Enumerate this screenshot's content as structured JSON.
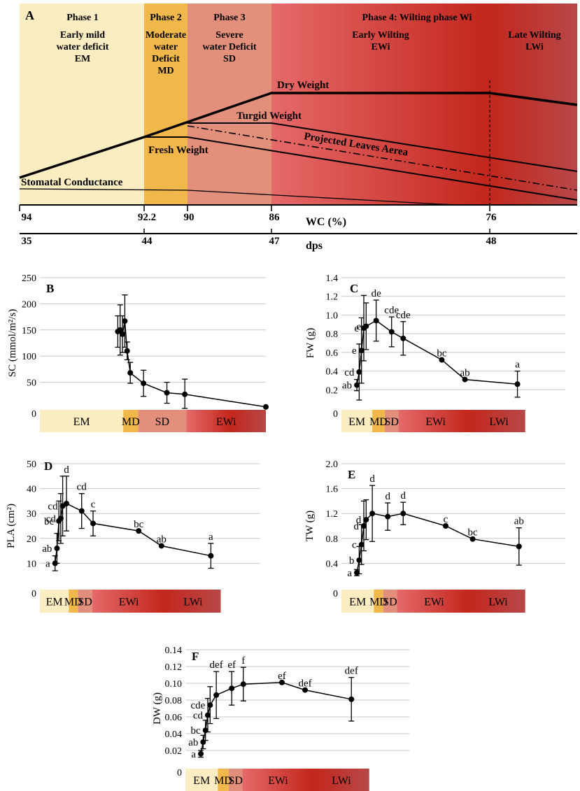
{
  "figure": {
    "colors": {
      "em": "#fbedc2",
      "md": "#f0b84a",
      "sd": "#e2907c",
      "ewi_light": "#e56a6a",
      "ewi_mid": "#c3261c",
      "lwi_dark": "#b84848",
      "line": "#000000"
    }
  },
  "panelA": {
    "letter": "A",
    "phases": [
      {
        "title": "Phase 1",
        "lines": [
          "Early mild",
          "water deficit",
          "EM"
        ]
      },
      {
        "title": "Phase 2",
        "lines": [
          "Moderate",
          "water",
          "Deficit",
          "MD"
        ]
      },
      {
        "title": "Phase 3",
        "lines": [
          "Severe",
          "water Deficit",
          "SD"
        ]
      },
      {
        "title": "Phase 4: Wilting phase Wi",
        "lines": []
      }
    ],
    "subphases": [
      {
        "lines": [
          "Early Wilting",
          "EWi"
        ]
      },
      {
        "lines": [
          "Late Wilting",
          "LWi"
        ]
      }
    ],
    "curves": {
      "dry": "Dry Weight",
      "turgid": "Turgid Weight",
      "fresh": "Fresh Weight",
      "pla": "Projected Leaves Aerea",
      "sc": "Stomatal Conductance"
    },
    "wc_ticks": [
      "94",
      "92.2",
      "90",
      "86",
      "76"
    ],
    "wc_label": "WC (%)",
    "dps_ticks": [
      "35",
      "44",
      "47",
      "48"
    ],
    "dps_label": "dps"
  },
  "chart_data": [
    {
      "id": "B",
      "type": "line",
      "ylabel": "SC (mmol/m²/s)",
      "ylim": [
        0,
        250
      ],
      "yticks": [
        "0",
        "50",
        "100",
        "150",
        "200",
        "250"
      ],
      "xmax": 29,
      "x": [
        10.0,
        10.3,
        10.6,
        10.9,
        11.2,
        11.6,
        13.3,
        16.3,
        18.6,
        29.0
      ],
      "y": [
        147,
        150,
        142,
        167,
        110,
        68,
        48,
        30,
        27,
        3
      ],
      "err": [
        30,
        48,
        35,
        50,
        17,
        20,
        25,
        20,
        29,
        0
      ],
      "sig": [],
      "band": [
        {
          "label": "EM",
          "from": 0,
          "to": 10.7
        },
        {
          "label": "MD",
          "from": 10.7,
          "to": 12.6
        },
        {
          "label": "SD",
          "from": 12.6,
          "to": 18.8
        },
        {
          "label": "EWi",
          "from": 18.8,
          "to": 29.0
        }
      ]
    },
    {
      "id": "C",
      "type": "line",
      "ylabel": "FW (g)",
      "ylim": [
        0,
        1.4
      ],
      "yticks": [
        "0",
        "0.2",
        "0.4",
        "0.6",
        "0.8",
        "1.0",
        "1.2",
        "1.4"
      ],
      "xmax": 29,
      "x": [
        2.0,
        2.3,
        2.6,
        2.9,
        3.2,
        4.5,
        6.5,
        8.0,
        13.0,
        16.0,
        22.8
      ],
      "y": [
        0.25,
        0.39,
        0.62,
        0.86,
        0.88,
        0.94,
        0.82,
        0.75,
        0.52,
        0.31,
        0.26
      ],
      "err": [
        0.06,
        0.3,
        0.35,
        0.35,
        0.25,
        0.22,
        0.16,
        0.18,
        0.0,
        0.0,
        0.14
      ],
      "sig": [
        "ab",
        "cd",
        "e",
        "e",
        "e",
        "de",
        "cde",
        "cde",
        "bc",
        "ab",
        "a"
      ],
      "band": [
        {
          "label": "EM",
          "from": 0,
          "to": 4.0
        },
        {
          "label": "MD",
          "from": 4.0,
          "to": 5.6
        },
        {
          "label": "SD",
          "from": 5.6,
          "to": 7.4
        },
        {
          "label": "EWi",
          "from": 7.4,
          "to": 17.0
        },
        {
          "label": "LWi",
          "from": 17.0,
          "to": 23.8
        }
      ]
    },
    {
      "id": "D",
      "type": "line",
      "ylabel": "PLA (cm²)",
      "ylim": [
        0,
        50
      ],
      "yticks": [
        "0",
        "10",
        "20",
        "30",
        "40",
        "50"
      ],
      "xmax": 29,
      "x": [
        2.0,
        2.25,
        2.5,
        2.75,
        3.0,
        3.5,
        5.5,
        7.0,
        13.0,
        16.0,
        22.5
      ],
      "y": [
        10,
        16,
        27,
        28,
        33,
        34,
        31,
        26,
        23,
        17,
        13
      ],
      "err": [
        3,
        6,
        8,
        10,
        12,
        11,
        7,
        5,
        0,
        0,
        5
      ],
      "sig": [
        "a",
        "ab",
        "bc",
        "cd",
        "cd",
        "d",
        "cd",
        "c",
        "bc",
        "ab",
        "a"
      ],
      "band": [
        {
          "label": "EM",
          "from": 0,
          "to": 3.8
        },
        {
          "label": "MD",
          "from": 3.8,
          "to": 5.0
        },
        {
          "label": "SD",
          "from": 5.0,
          "to": 6.9
        },
        {
          "label": "EWi",
          "from": 6.9,
          "to": 16.5
        },
        {
          "label": "LWi",
          "from": 16.5,
          "to": 23.8
        }
      ]
    },
    {
      "id": "E",
      "type": "line",
      "ylabel": "TW (g)",
      "ylim": [
        0,
        2.0
      ],
      "yticks": [
        "0",
        "0.4",
        "0.8",
        "1.2",
        "1.6",
        "2.0"
      ],
      "xmax": 29,
      "x": [
        2.0,
        2.3,
        2.6,
        2.9,
        3.2,
        4.0,
        6.0,
        8.0,
        13.5,
        17.0,
        23.0
      ],
      "y": [
        0.25,
        0.45,
        0.7,
        1.0,
        1.1,
        1.2,
        1.15,
        1.2,
        1.0,
        0.79,
        0.67
      ],
      "err": [
        0.05,
        0.22,
        0.32,
        0.4,
        0.32,
        0.45,
        0.22,
        0.18,
        0.0,
        0.0,
        0.3
      ],
      "sig": [
        "a",
        "b",
        "c",
        "d",
        "d",
        "d",
        "d",
        "d",
        "c",
        "bc",
        "ab"
      ],
      "band": [
        {
          "label": "EM",
          "from": 0,
          "to": 4.2
        },
        {
          "label": "MD",
          "from": 4.2,
          "to": 5.4
        },
        {
          "label": "SD",
          "from": 5.4,
          "to": 7.2
        },
        {
          "label": "EWi",
          "from": 7.2,
          "to": 16.8
        },
        {
          "label": "LWi",
          "from": 16.8,
          "to": 23.8
        }
      ]
    },
    {
      "id": "F",
      "type": "line",
      "ylabel": "DW (g)",
      "ylim": [
        0,
        0.14
      ],
      "yticks": [
        "0",
        "0.02",
        "0.04",
        "0.06",
        "0.08",
        "0.10",
        "0.12",
        "0.14"
      ],
      "xmax": 29,
      "x": [
        2.0,
        2.3,
        2.6,
        2.9,
        3.2,
        4.0,
        6.0,
        7.5,
        12.5,
        15.5,
        21.5
      ],
      "y": [
        0.016,
        0.03,
        0.044,
        0.062,
        0.074,
        0.086,
        0.094,
        0.099,
        0.101,
        0.092,
        0.081
      ],
      "err": [
        0.004,
        0.008,
        0.012,
        0.02,
        0.022,
        0.028,
        0.02,
        0.02,
        0.0,
        0.0,
        0.026
      ],
      "sig": [
        "a",
        "ab",
        "bc",
        "cd",
        "cde",
        "def",
        "ef",
        "f",
        "ef",
        "def",
        "def"
      ],
      "band": [
        {
          "label": "EM",
          "from": 0,
          "to": 4.2
        },
        {
          "label": "MD",
          "from": 4.2,
          "to": 5.6
        },
        {
          "label": "SD",
          "from": 5.6,
          "to": 7.4
        },
        {
          "label": "EWi",
          "from": 7.4,
          "to": 16.6
        },
        {
          "label": "LWi",
          "from": 16.6,
          "to": 23.8
        }
      ]
    }
  ]
}
